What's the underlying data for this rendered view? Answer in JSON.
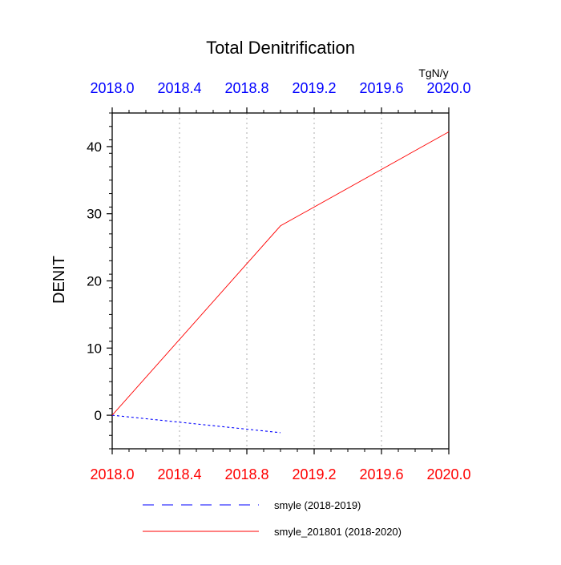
{
  "chart_data": {
    "type": "line",
    "title": "Total Denitrification",
    "ylabel": "DENIT",
    "units": "TgN/y",
    "xlim": [
      2018.0,
      2020.0
    ],
    "ylim": [
      -5,
      45
    ],
    "x_ticks": [
      "2018.0",
      "2018.4",
      "2018.8",
      "2019.2",
      "2019.6",
      "2020.0"
    ],
    "x_tick_values": [
      2018.0,
      2018.4,
      2018.8,
      2019.2,
      2019.6,
      2020.0
    ],
    "y_ticks": [
      "0",
      "10",
      "20",
      "30",
      "40"
    ],
    "y_tick_values": [
      0,
      10,
      20,
      30,
      40
    ],
    "bottom_axis_color": "#ff0000",
    "top_axis_color": "#0000ff",
    "grid": "vertical dotted",
    "legend_placement": "bottom",
    "series": [
      {
        "name": "smyle (2018-2019)",
        "color": "#0000ff",
        "dash": "dashed",
        "x": [
          2018.0,
          2019.0
        ],
        "y": [
          0.0,
          -2.6
        ]
      },
      {
        "name": "smyle_201801 (2018-2020)",
        "color": "#ff0000",
        "dash": "solid",
        "x": [
          2018.0,
          2019.0,
          2020.0
        ],
        "y": [
          0.0,
          28.2,
          42.2
        ]
      }
    ]
  }
}
